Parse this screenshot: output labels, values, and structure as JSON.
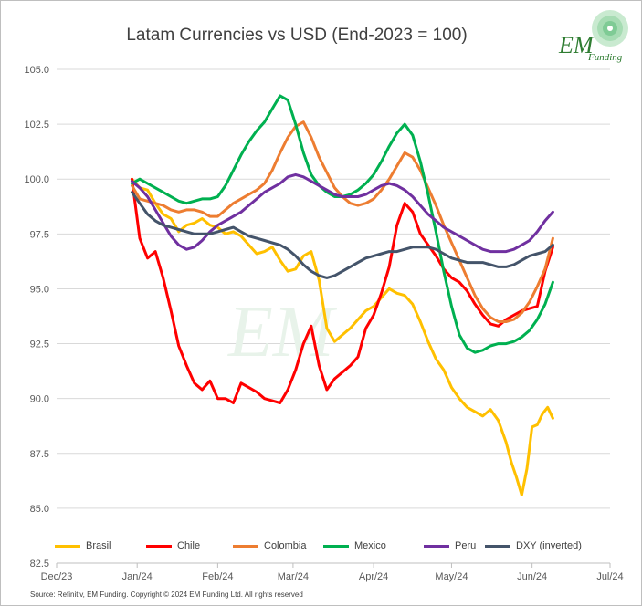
{
  "chart_data": {
    "type": "line",
    "title": "Latam Currencies vs USD (End-2023 = 100)",
    "xlabel": "",
    "ylabel": "",
    "ylim": [
      82.5,
      105.0
    ],
    "yticks": [
      "105.0",
      "102.5",
      "100.0",
      "97.5",
      "95.0",
      "92.5",
      "90.0",
      "87.5",
      "85.0",
      "82.5"
    ],
    "ytick_values": [
      105.0,
      102.5,
      100.0,
      97.5,
      95.0,
      92.5,
      90.0,
      87.5,
      85.0,
      82.5
    ],
    "xticks": [
      "Dec/23",
      "Jan/24",
      "Feb/24",
      "Mar/24",
      "Apr/24",
      "May/24",
      "Jun/24",
      "Jul/24"
    ],
    "xtick_days": [
      0,
      31,
      62,
      91,
      122,
      152,
      183,
      213
    ],
    "grid": true,
    "legend_position": "bottom",
    "x_unit": "days since 2023-12-01",
    "series": [
      {
        "name": "Brasil",
        "color": "#FFC000",
        "x": [
          29,
          32,
          35,
          38,
          41,
          44,
          47,
          50,
          53,
          56,
          59,
          62,
          65,
          68,
          71,
          74,
          77,
          80,
          83,
          86,
          89,
          92,
          95,
          98,
          101,
          104,
          107,
          110,
          113,
          116,
          119,
          122,
          125,
          128,
          131,
          134,
          137,
          140,
          143,
          146,
          149,
          152,
          155,
          158,
          161,
          164,
          167,
          170,
          173,
          175,
          177,
          179,
          181,
          183,
          185,
          187,
          189,
          191
        ],
        "values": [
          100,
          99.6,
          99.5,
          98.9,
          98.4,
          98.2,
          97.6,
          97.9,
          98.0,
          98.2,
          97.9,
          97.8,
          97.5,
          97.6,
          97.4,
          97.0,
          96.6,
          96.7,
          96.9,
          96.3,
          95.8,
          95.9,
          96.5,
          96.7,
          95.4,
          93.2,
          92.6,
          92.9,
          93.2,
          93.6,
          94.0,
          94.2,
          94.6,
          95.0,
          94.8,
          94.7,
          94.3,
          93.5,
          92.6,
          91.8,
          91.3,
          90.5,
          90.0,
          89.6,
          89.4,
          89.2,
          89.5,
          89.0,
          88.0,
          87.1,
          86.4,
          85.6,
          86.8,
          88.7,
          88.8,
          89.3,
          89.6,
          89.1
        ]
      },
      {
        "name": "Chile",
        "color": "#FF0000",
        "x": [
          29,
          32,
          35,
          38,
          41,
          44,
          47,
          50,
          53,
          56,
          59,
          62,
          65,
          68,
          71,
          74,
          77,
          80,
          83,
          86,
          89,
          92,
          95,
          98,
          101,
          104,
          107,
          110,
          113,
          116,
          119,
          122,
          125,
          128,
          131,
          134,
          137,
          140,
          143,
          146,
          149,
          152,
          155,
          158,
          161,
          164,
          167,
          170,
          173,
          176,
          179,
          182,
          185,
          188,
          191
        ],
        "values": [
          100,
          97.3,
          96.4,
          96.7,
          95.5,
          94.0,
          92.4,
          91.5,
          90.7,
          90.4,
          90.8,
          90.0,
          90.0,
          89.8,
          90.7,
          90.5,
          90.3,
          90.0,
          89.9,
          89.8,
          90.4,
          91.3,
          92.5,
          93.3,
          91.5,
          90.4,
          90.9,
          91.2,
          91.5,
          91.9,
          93.2,
          93.8,
          94.8,
          96.0,
          97.9,
          98.9,
          98.5,
          97.5,
          97.0,
          96.5,
          95.9,
          95.5,
          95.3,
          94.9,
          94.3,
          93.8,
          93.4,
          93.3,
          93.6,
          93.8,
          94.0,
          94.1,
          94.2,
          95.8,
          96.9
        ]
      },
      {
        "name": "Colombia",
        "color": "#ED7D31",
        "x": [
          29,
          32,
          35,
          38,
          41,
          44,
          47,
          50,
          53,
          56,
          59,
          62,
          65,
          68,
          71,
          74,
          77,
          80,
          83,
          86,
          89,
          92,
          95,
          98,
          101,
          104,
          107,
          110,
          113,
          116,
          119,
          122,
          125,
          128,
          131,
          134,
          137,
          140,
          143,
          146,
          149,
          152,
          155,
          158,
          161,
          164,
          167,
          170,
          173,
          176,
          179,
          182,
          185,
          188,
          191
        ],
        "values": [
          99.7,
          99.1,
          99.0,
          98.9,
          98.8,
          98.6,
          98.5,
          98.6,
          98.6,
          98.5,
          98.3,
          98.3,
          98.6,
          98.9,
          99.1,
          99.3,
          99.5,
          99.8,
          100.4,
          101.2,
          101.9,
          102.4,
          102.6,
          101.9,
          101.0,
          100.3,
          99.6,
          99.2,
          98.9,
          98.8,
          98.9,
          99.1,
          99.5,
          100.0,
          100.6,
          101.2,
          101.0,
          100.4,
          99.6,
          98.8,
          97.9,
          97.1,
          96.3,
          95.5,
          94.7,
          94.1,
          93.7,
          93.5,
          93.5,
          93.6,
          93.9,
          94.4,
          95.1,
          95.9,
          97.3
        ]
      },
      {
        "name": "Mexico",
        "color": "#00B050",
        "x": [
          29,
          32,
          35,
          38,
          41,
          44,
          47,
          50,
          53,
          56,
          59,
          62,
          65,
          68,
          71,
          74,
          77,
          80,
          83,
          86,
          89,
          92,
          95,
          98,
          101,
          104,
          107,
          110,
          113,
          116,
          119,
          122,
          125,
          128,
          131,
          134,
          137,
          140,
          143,
          146,
          149,
          152,
          155,
          158,
          161,
          164,
          167,
          170,
          173,
          176,
          179,
          182,
          185,
          188,
          191
        ],
        "values": [
          99.8,
          100.0,
          99.8,
          99.6,
          99.4,
          99.2,
          99.0,
          98.9,
          99.0,
          99.1,
          99.1,
          99.2,
          99.7,
          100.4,
          101.1,
          101.7,
          102.2,
          102.6,
          103.2,
          103.8,
          103.6,
          102.5,
          101.2,
          100.2,
          99.7,
          99.4,
          99.2,
          99.2,
          99.3,
          99.5,
          99.8,
          100.2,
          100.8,
          101.5,
          102.1,
          102.5,
          102.0,
          100.8,
          99.3,
          97.6,
          95.8,
          94.2,
          92.9,
          92.3,
          92.1,
          92.2,
          92.4,
          92.5,
          92.5,
          92.6,
          92.8,
          93.1,
          93.6,
          94.3,
          95.3
        ]
      },
      {
        "name": "Peru",
        "color": "#7030A0",
        "x": [
          29,
          32,
          35,
          38,
          41,
          44,
          47,
          50,
          53,
          56,
          59,
          62,
          65,
          68,
          71,
          74,
          77,
          80,
          83,
          86,
          89,
          92,
          95,
          98,
          101,
          104,
          107,
          110,
          113,
          116,
          119,
          122,
          125,
          128,
          131,
          134,
          137,
          140,
          143,
          146,
          149,
          152,
          155,
          158,
          161,
          164,
          167,
          170,
          173,
          176,
          179,
          182,
          185,
          188,
          191
        ],
        "values": [
          99.9,
          99.6,
          99.2,
          98.6,
          98.0,
          97.4,
          97.0,
          96.8,
          96.9,
          97.2,
          97.6,
          97.9,
          98.1,
          98.3,
          98.5,
          98.8,
          99.1,
          99.4,
          99.6,
          99.8,
          100.1,
          100.2,
          100.1,
          99.9,
          99.7,
          99.5,
          99.3,
          99.2,
          99.2,
          99.2,
          99.3,
          99.5,
          99.7,
          99.8,
          99.7,
          99.5,
          99.2,
          98.8,
          98.4,
          98.1,
          97.8,
          97.6,
          97.4,
          97.2,
          97.0,
          96.8,
          96.7,
          96.7,
          96.7,
          96.8,
          97.0,
          97.2,
          97.6,
          98.1,
          98.5
        ]
      },
      {
        "name": "DXY (inverted)",
        "color": "#44546A",
        "x": [
          29,
          32,
          35,
          38,
          41,
          44,
          47,
          50,
          53,
          56,
          59,
          62,
          65,
          68,
          71,
          74,
          77,
          80,
          83,
          86,
          89,
          92,
          95,
          98,
          101,
          104,
          107,
          110,
          113,
          116,
          119,
          122,
          125,
          128,
          131,
          134,
          137,
          140,
          143,
          146,
          149,
          152,
          155,
          158,
          161,
          164,
          167,
          170,
          173,
          176,
          179,
          182,
          185,
          188,
          191
        ],
        "values": [
          99.4,
          98.9,
          98.4,
          98.1,
          97.9,
          97.8,
          97.7,
          97.6,
          97.5,
          97.5,
          97.5,
          97.6,
          97.7,
          97.8,
          97.6,
          97.4,
          97.3,
          97.2,
          97.1,
          97.0,
          96.8,
          96.5,
          96.1,
          95.8,
          95.6,
          95.5,
          95.6,
          95.8,
          96.0,
          96.2,
          96.4,
          96.5,
          96.6,
          96.7,
          96.7,
          96.8,
          96.9,
          96.9,
          96.9,
          96.8,
          96.6,
          96.4,
          96.3,
          96.2,
          96.2,
          96.2,
          96.1,
          96.0,
          96.0,
          96.1,
          96.3,
          96.5,
          96.6,
          96.7,
          97.0
        ]
      }
    ]
  },
  "logo": {
    "text_em": "EM",
    "text_funding": "Funding",
    "color": "#6aa84f"
  },
  "watermark": {
    "text": "EM"
  },
  "source_note": "Source: Refinitiv, EM Funding.  Copyright © 2024 EM Funding Ltd. All rights reserved"
}
